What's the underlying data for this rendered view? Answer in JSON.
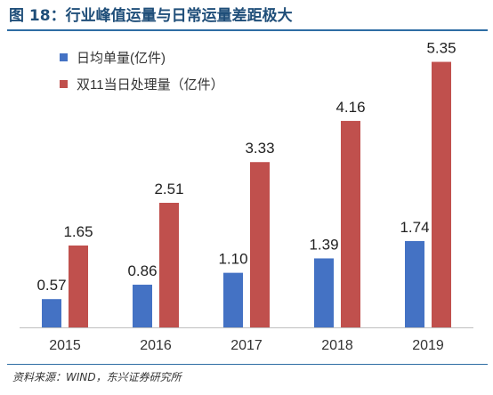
{
  "figure": {
    "title": "图 18：行业峰值运量与日常运量差距极大",
    "source": "资料来源：WIND，东兴证券研究所"
  },
  "chart_data": {
    "type": "bar",
    "categories": [
      "2015",
      "2016",
      "2017",
      "2018",
      "2019"
    ],
    "series": [
      {
        "name": "日均单量(亿件)",
        "color": "#4472c4",
        "values": [
          0.57,
          0.86,
          1.1,
          1.39,
          1.74
        ]
      },
      {
        "name": "双11当日处理量（亿件）",
        "color": "#c0504d",
        "values": [
          1.65,
          2.51,
          3.33,
          4.16,
          5.35
        ]
      }
    ],
    "value_labels": [
      [
        "0.57",
        "0.86",
        "1.10",
        "1.39",
        "1.74"
      ],
      [
        "1.65",
        "2.51",
        "3.33",
        "4.16",
        "5.35"
      ]
    ],
    "ylim": [
      0,
      5.7
    ],
    "legend_position": "top-left",
    "grid": false,
    "xlabel": "",
    "ylabel": ""
  }
}
